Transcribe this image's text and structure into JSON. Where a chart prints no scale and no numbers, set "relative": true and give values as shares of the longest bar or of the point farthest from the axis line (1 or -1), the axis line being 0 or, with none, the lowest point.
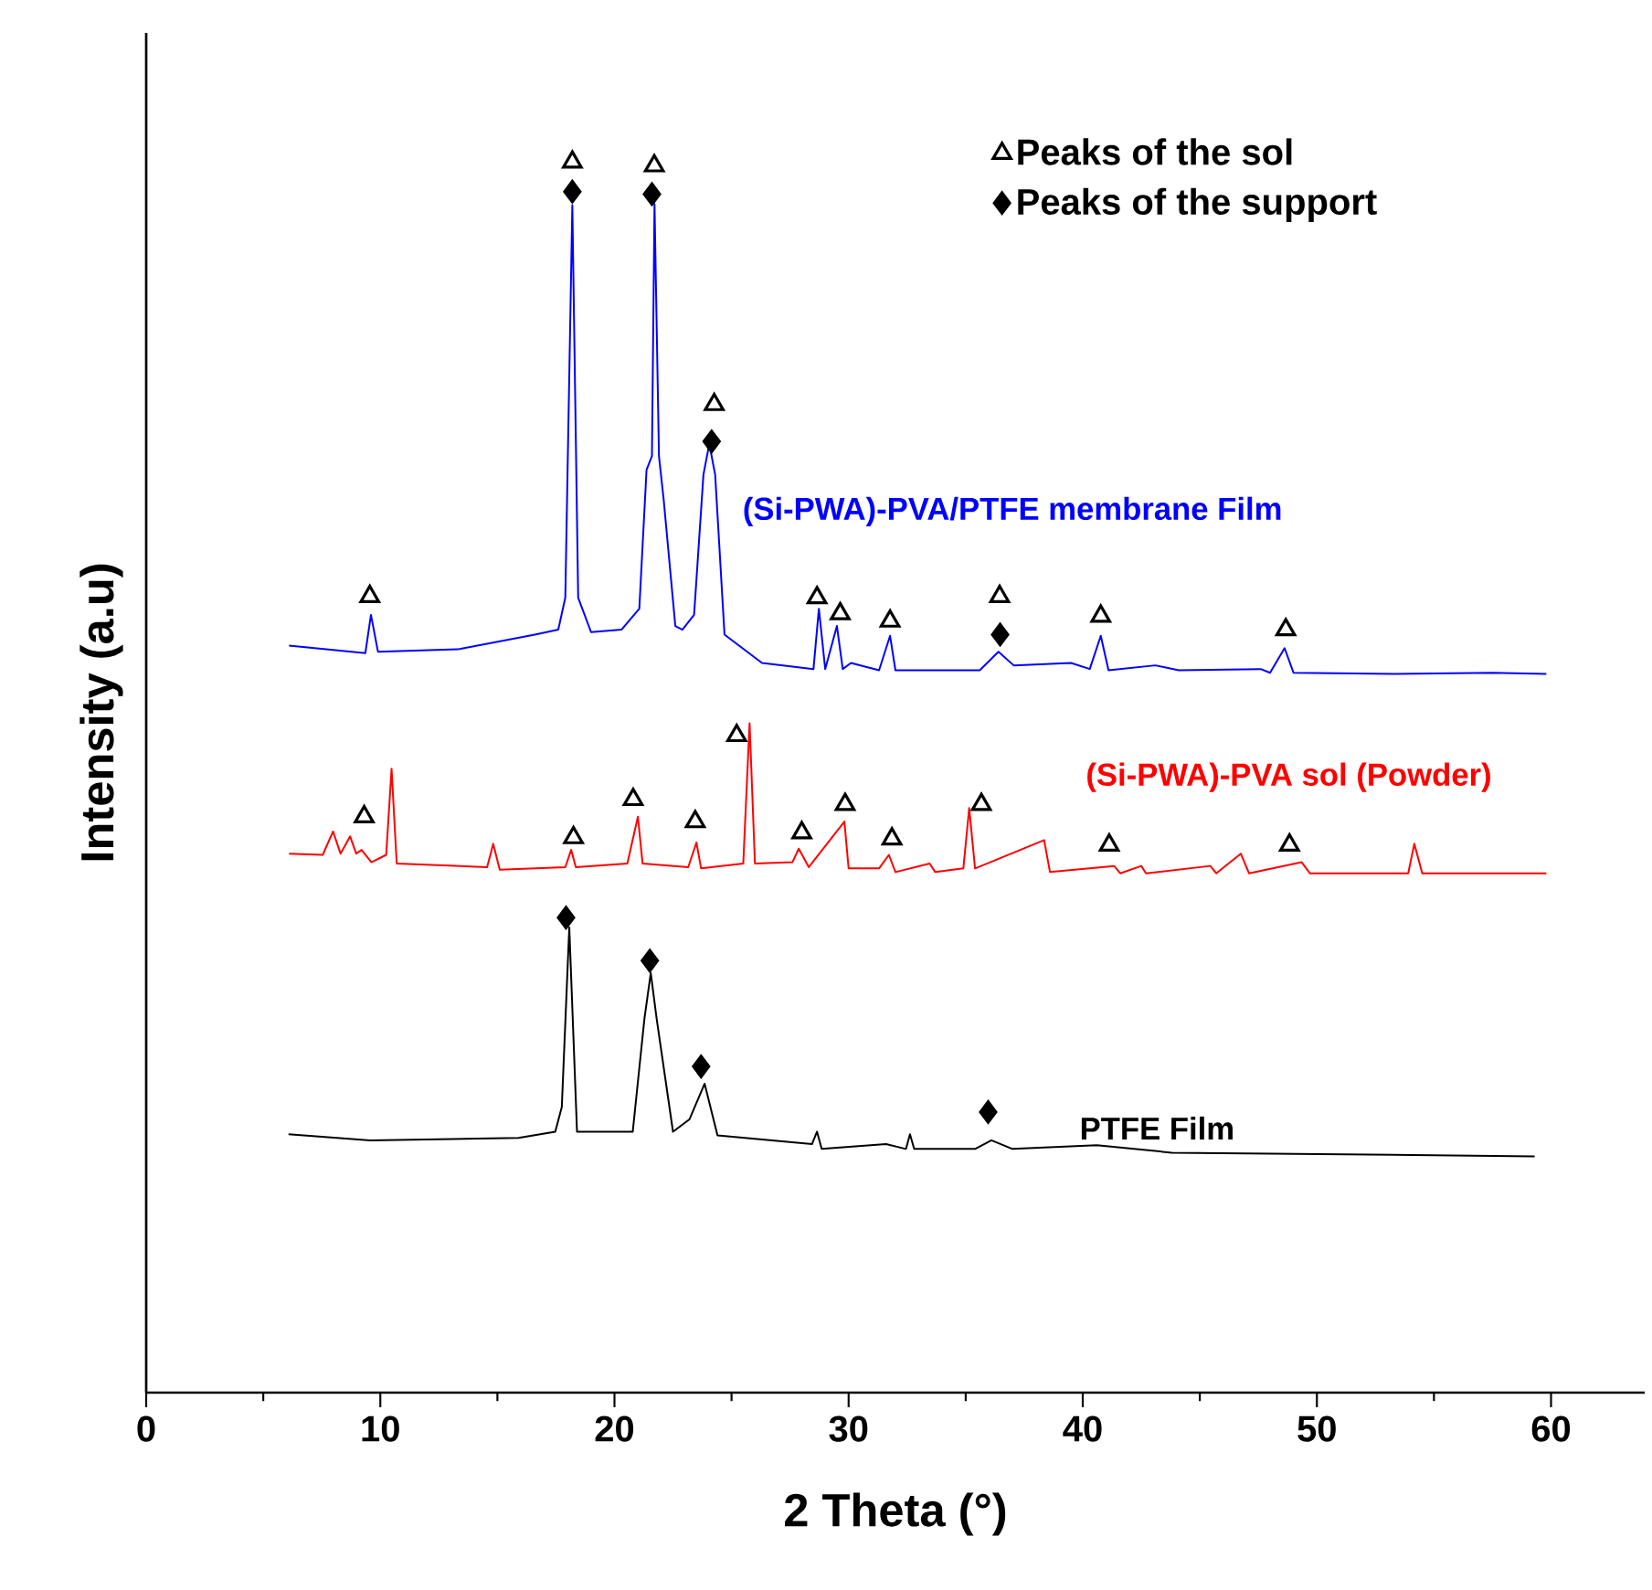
{
  "chart_data": {
    "type": "line",
    "xlabel": "2 Theta (°)",
    "ylabel": "Intensity (a.u)",
    "relative": true,
    "xlim": [
      0,
      64
    ],
    "xticks": [
      0,
      10,
      20,
      30,
      40,
      50,
      60
    ],
    "legend": "top right",
    "grid": false,
    "series": [
      {
        "name": "(Si-PWA)-PVA/PTFE membrane Film",
        "type": "line",
        "marker": "none",
        "color": "#0000ff",
        "x": [
          6.1,
          9.36,
          9.6,
          9.9,
          13.3,
          16.6,
          17.6,
          17.9,
          18.2,
          18.45,
          19.0,
          20.3,
          21.06,
          21.37,
          21.6,
          21.71,
          21.9,
          22.1,
          22.6,
          22.9,
          23.4,
          23.8,
          24.05,
          24.3,
          24.7,
          26.3,
          28.5,
          28.73,
          29.0,
          29.5,
          29.75,
          30.1,
          31.3,
          31.77,
          32.0,
          35.6,
          36.4,
          37.05,
          39.5,
          40.3,
          40.77,
          41.1,
          43.1,
          44.1,
          47.6,
          48.0,
          48.62,
          49.0,
          53.3,
          57.5,
          59.8
        ],
        "values": [
          0.607,
          0.601,
          0.632,
          0.602,
          0.604,
          0.616,
          0.62,
          0.646,
          0.965,
          0.646,
          0.618,
          0.62,
          0.637,
          0.75,
          0.761,
          0.966,
          0.761,
          0.726,
          0.623,
          0.62,
          0.632,
          0.746,
          0.771,
          0.746,
          0.616,
          0.593,
          0.588,
          0.637,
          0.588,
          0.623,
          0.588,
          0.593,
          0.587,
          0.615,
          0.587,
          0.587,
          0.602,
          0.591,
          0.593,
          0.588,
          0.615,
          0.587,
          0.591,
          0.587,
          0.588,
          0.585,
          0.605,
          0.585,
          0.584,
          0.585,
          0.584
        ]
      },
      {
        "name": "(Si-PWA)-PVA sol (Powder)",
        "type": "line",
        "marker": "none",
        "color": "#ff0000",
        "x": [
          6.1,
          7.54,
          7.98,
          8.3,
          8.71,
          8.97,
          9.2,
          9.62,
          10.25,
          10.48,
          10.7,
          14.56,
          14.82,
          15.1,
          17.9,
          18.15,
          18.35,
          20.55,
          21.0,
          21.2,
          23.15,
          23.5,
          23.7,
          25.5,
          25.77,
          26.0,
          27.6,
          27.87,
          28.3,
          29.82,
          30.0,
          31.3,
          31.72,
          32.0,
          33.46,
          33.7,
          34.9,
          35.15,
          35.4,
          38.35,
          38.6,
          41.34,
          41.6,
          42.5,
          42.7,
          45.45,
          45.7,
          46.75,
          47.1,
          49.35,
          49.7,
          53.9,
          54.16,
          54.5,
          59.8
        ],
        "values": [
          0.438,
          0.437,
          0.456,
          0.438,
          0.452,
          0.438,
          0.441,
          0.431,
          0.437,
          0.507,
          0.43,
          0.427,
          0.446,
          0.425,
          0.427,
          0.441,
          0.427,
          0.43,
          0.468,
          0.43,
          0.427,
          0.447,
          0.426,
          0.43,
          0.544,
          0.43,
          0.431,
          0.442,
          0.427,
          0.464,
          0.426,
          0.426,
          0.437,
          0.423,
          0.43,
          0.423,
          0.426,
          0.475,
          0.426,
          0.449,
          0.423,
          0.428,
          0.422,
          0.428,
          0.422,
          0.428,
          0.422,
          0.438,
          0.422,
          0.431,
          0.422,
          0.422,
          0.446,
          0.422,
          0.422
        ]
      },
      {
        "name": "PTFE Film",
        "type": "line",
        "marker": "none",
        "color": "#000000",
        "x": [
          6.08,
          9.57,
          15.9,
          17.47,
          17.75,
          18.07,
          18.4,
          20.78,
          21.28,
          21.55,
          21.8,
          22.5,
          23.2,
          23.85,
          24.4,
          28.44,
          28.65,
          28.85,
          31.6,
          32.45,
          32.62,
          32.8,
          35.4,
          36.1,
          37.0,
          40.6,
          43.8,
          59.3
        ],
        "values": [
          0.21,
          0.205,
          0.207,
          0.212,
          0.232,
          0.378,
          0.212,
          0.212,
          0.304,
          0.341,
          0.304,
          0.212,
          0.222,
          0.251,
          0.209,
          0.202,
          0.212,
          0.198,
          0.202,
          0.198,
          0.21,
          0.198,
          0.198,
          0.205,
          0.198,
          0.201,
          0.195,
          0.192
        ]
      },
      {
        "name": "Peaks of the sol",
        "type": "scatter",
        "marker": "triangle",
        "color": "#000000",
        "x": [
          9.55,
          18.2,
          21.7,
          24.26,
          28.65,
          29.64,
          31.77,
          36.45,
          40.77,
          48.67,
          9.31,
          18.25,
          20.8,
          23.45,
          25.22,
          28.0,
          29.85,
          31.85,
          35.67,
          41.13,
          48.83
        ],
        "values": [
          0.647,
          1.0,
          0.997,
          0.803,
          0.646,
          0.633,
          0.627,
          0.647,
          0.631,
          0.62,
          0.468,
          0.451,
          0.482,
          0.464,
          0.534,
          0.455,
          0.478,
          0.45,
          0.478,
          0.445,
          0.445
        ]
      },
      {
        "name": "Peaks of the support",
        "type": "scatter",
        "marker": "diamond",
        "color": "#000000",
        "x": [
          18.2,
          21.6,
          24.15,
          36.47,
          17.93,
          21.51,
          23.7,
          35.96
        ],
        "values": [
          0.976,
          0.974,
          0.773,
          0.616,
          0.386,
          0.351,
          0.265,
          0.228
        ]
      }
    ]
  }
}
